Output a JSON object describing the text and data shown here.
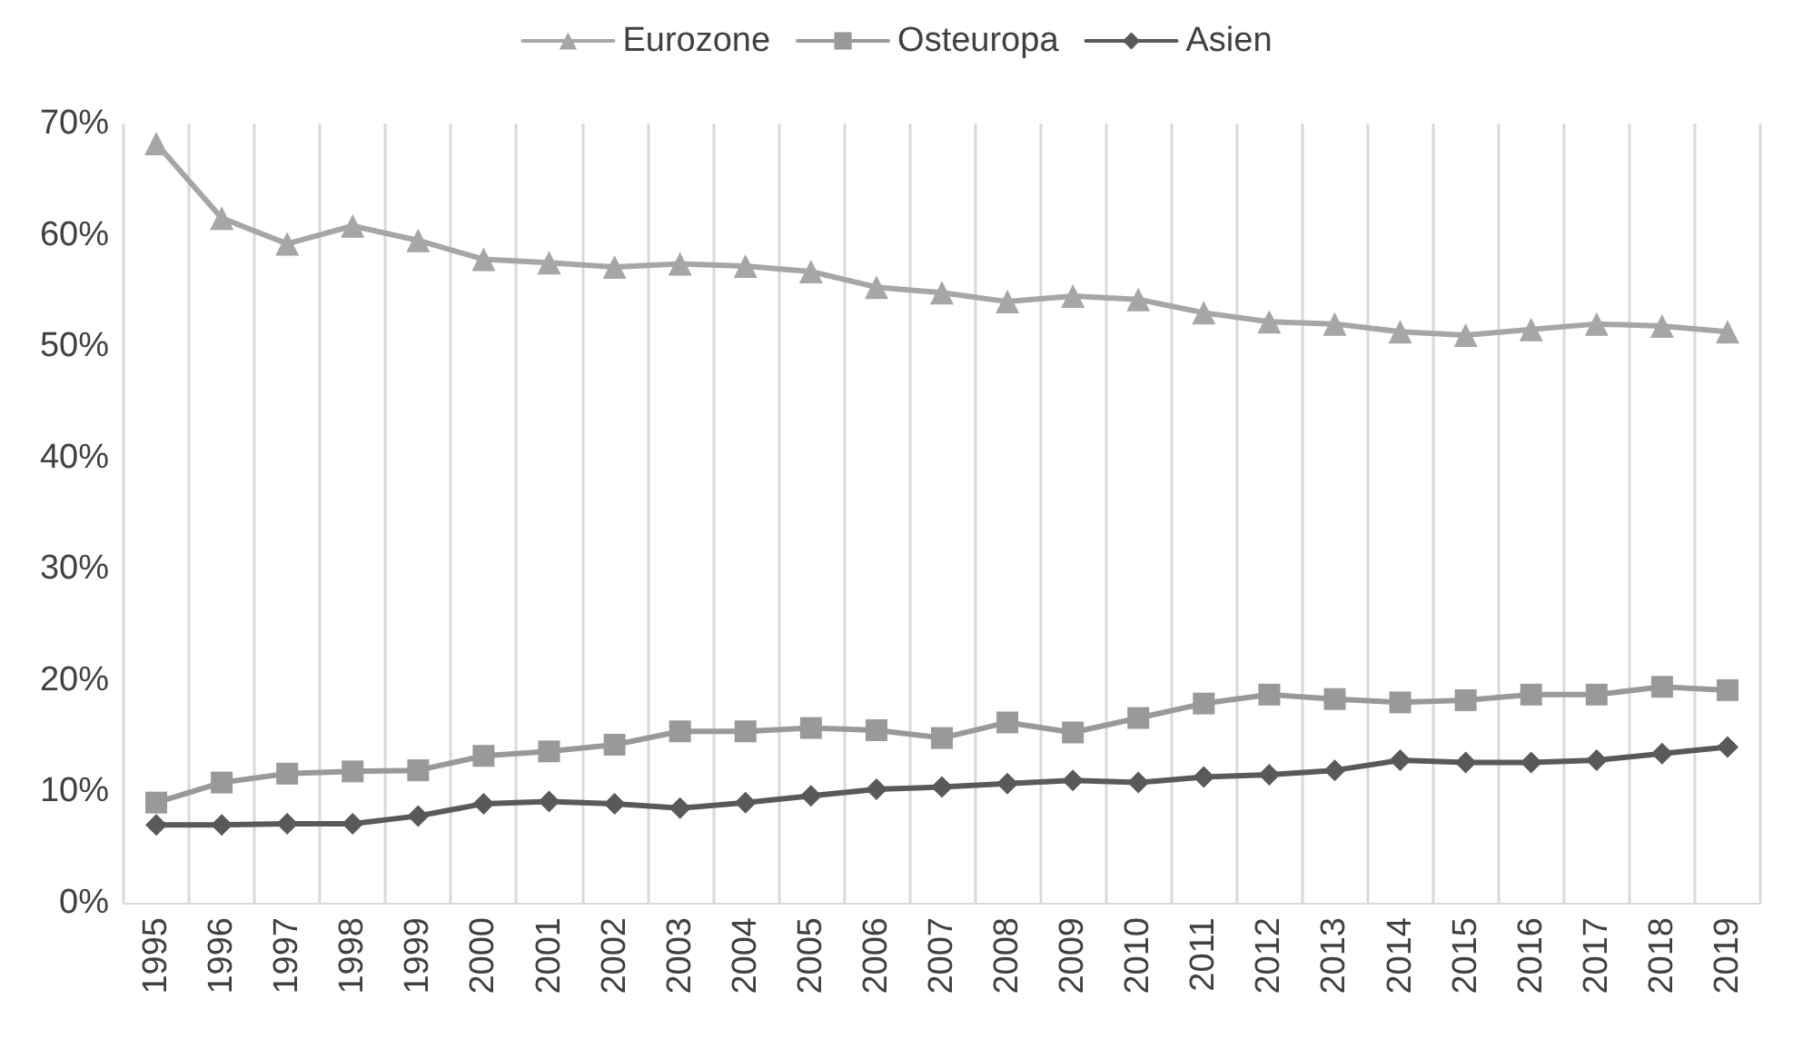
{
  "chart_data": {
    "type": "line",
    "categories": [
      "1995",
      "1996",
      "1997",
      "1998",
      "1999",
      "2000",
      "2001",
      "2002",
      "2003",
      "2004",
      "2005",
      "2006",
      "2007",
      "2008",
      "2009",
      "2010",
      "2011",
      "2012",
      "2013",
      "2014",
      "2015",
      "2016",
      "2017",
      "2018",
      "2019"
    ],
    "series": [
      {
        "name": "Eurozone",
        "color": "#a6a6a6",
        "marker": "triangle",
        "values": [
          68.2,
          61.5,
          59.2,
          60.8,
          59.5,
          57.8,
          57.5,
          57.1,
          57.4,
          57.2,
          56.7,
          55.3,
          54.8,
          54.0,
          54.5,
          54.2,
          53.0,
          52.2,
          52.0,
          51.3,
          51.0,
          51.5,
          52.0,
          51.8,
          51.3
        ]
      },
      {
        "name": "Osteuropa",
        "color": "#999999",
        "marker": "square",
        "values": [
          9.0,
          10.8,
          11.6,
          11.8,
          11.9,
          13.2,
          13.6,
          14.2,
          15.4,
          15.4,
          15.7,
          15.5,
          14.8,
          16.2,
          15.3,
          16.6,
          17.9,
          18.7,
          18.3,
          18.0,
          18.2,
          18.7,
          18.7,
          19.4,
          19.1
        ]
      },
      {
        "name": "Asien",
        "color": "#595959",
        "marker": "diamond",
        "values": [
          7.0,
          7.0,
          7.1,
          7.1,
          7.8,
          8.9,
          9.1,
          8.9,
          8.5,
          9.0,
          9.6,
          10.2,
          10.4,
          10.7,
          11.0,
          10.8,
          11.3,
          11.5,
          11.9,
          12.8,
          12.6,
          12.6,
          12.8,
          13.4,
          14.0
        ]
      }
    ],
    "ylim": [
      0,
      70
    ],
    "yticks": [
      {
        "value": 0,
        "label": "0%"
      },
      {
        "value": 10,
        "label": "10%"
      },
      {
        "value": 20,
        "label": "20%"
      },
      {
        "value": 30,
        "label": "30%"
      },
      {
        "value": 40,
        "label": "40%"
      },
      {
        "value": 50,
        "label": "50%"
      },
      {
        "value": 60,
        "label": "60%"
      },
      {
        "value": 70,
        "label": "70%"
      }
    ],
    "grid": "x",
    "legend": "top",
    "line_style": "solid"
  }
}
